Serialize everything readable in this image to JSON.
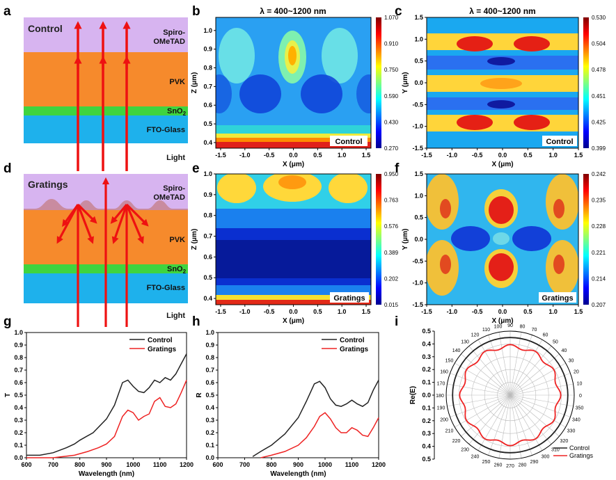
{
  "panel_letters": [
    "a",
    "b",
    "c",
    "d",
    "e",
    "f",
    "g",
    "h",
    "i"
  ],
  "diagram_control": {
    "title": "Control",
    "layers": [
      "Spiro-",
      "OMeTAD",
      "PVK",
      "SnO",
      "2",
      "FTO-Glass"
    ],
    "light_label": "Light"
  },
  "diagram_gratings": {
    "title": "Gratings",
    "layers": [
      "Spiro-",
      "OMeTAD",
      "PVK",
      "SnO",
      "2",
      "FTO-Glass"
    ],
    "light_label": "Light"
  },
  "colors": {
    "spiro": "#d7b4f0",
    "pvk": "#f68a2c",
    "sno2": "#3fd43f",
    "fto": "#1eb1ec",
    "arrow": "#ee1111",
    "control_line": "#222222",
    "gratings_line": "#ee2222"
  },
  "chart_data": [
    {
      "type": "heatmap",
      "id": "b",
      "title": "λ = 400~1200 nm",
      "xlabel": "X (μm)",
      "ylabel": "Z (μm)",
      "xlim": [
        -1.6,
        1.6
      ],
      "ylim": [
        0.37,
        1.07
      ],
      "xticks": [
        "-1.5",
        "-1.0",
        "-0.5",
        "0.0",
        "0.5",
        "1.0",
        "1.5"
      ],
      "yticks": [
        "0.4",
        "0.5",
        "0.6",
        "0.7",
        "0.8",
        "0.9",
        "1.0"
      ],
      "colorbar": [
        "1.070",
        "0.910",
        "0.750",
        "0.590",
        "0.430",
        "0.270"
      ],
      "label": "Control"
    },
    {
      "type": "heatmap",
      "id": "c",
      "title": "λ = 400~1200 nm",
      "xlabel": "X (μm)",
      "ylabel": "Y (μm)",
      "xlim": [
        -1.5,
        1.5
      ],
      "ylim": [
        -1.5,
        1.5
      ],
      "xticks": [
        "-1.5",
        "-1.0",
        "-0.5",
        "0.0",
        "0.5",
        "1.0",
        "1.5"
      ],
      "yticks": [
        "-1.5",
        "-1.0",
        "-0.5",
        "0.0",
        "0.5",
        "1.0",
        "1.5"
      ],
      "colorbar": [
        "0.530",
        "0.504",
        "0.478",
        "0.451",
        "0.425",
        "0.399"
      ],
      "label": "Control"
    },
    {
      "type": "heatmap",
      "id": "e",
      "xlabel": "X (μm)",
      "ylabel": "Z (μm)",
      "xlim": [
        -1.6,
        1.6
      ],
      "ylim": [
        0.37,
        1.0
      ],
      "xticks": [
        "-1.5",
        "-1.0",
        "-0.5",
        "0.0",
        "0.5",
        "1.0",
        "1.5"
      ],
      "yticks": [
        "0.4",
        "0.5",
        "0.6",
        "0.7",
        "0.8",
        "0.9",
        "1.0"
      ],
      "colorbar": [
        "0.950",
        "0.763",
        "0.576",
        "0.389",
        "0.202",
        "0.015"
      ],
      "label": "Gratings"
    },
    {
      "type": "heatmap",
      "id": "f",
      "xlabel": "X (μm)",
      "ylabel": "Y (μm)",
      "xlim": [
        -1.5,
        1.5
      ],
      "ylim": [
        -1.5,
        1.5
      ],
      "xticks": [
        "-1.5",
        "-1.0",
        "-0.5",
        "0.0",
        "0.5",
        "1.0",
        "1.5"
      ],
      "yticks": [
        "-1.5",
        "-1.0",
        "-0.5",
        "0.0",
        "0.5",
        "1.0",
        "1.5"
      ],
      "colorbar": [
        "0.242",
        "0.235",
        "0.228",
        "0.221",
        "0.214",
        "0.207"
      ],
      "label": "Gratings"
    },
    {
      "type": "line",
      "id": "g",
      "xlabel": "Wavelength (nm)",
      "ylabel": "T",
      "xlim": [
        600,
        1200
      ],
      "ylim": [
        0,
        1.0
      ],
      "xticks": [
        "600",
        "700",
        "800",
        "900",
        "1000",
        "1100",
        "1200"
      ],
      "yticks": [
        "0.0",
        "0.1",
        "0.2",
        "0.3",
        "0.4",
        "0.5",
        "0.6",
        "0.7",
        "0.8",
        "0.9",
        "1.0"
      ],
      "legend": "top-right",
      "series": [
        {
          "name": "Control",
          "x": [
            600,
            650,
            700,
            750,
            780,
            800,
            850,
            900,
            930,
            960,
            980,
            1000,
            1020,
            1040,
            1060,
            1080,
            1100,
            1120,
            1140,
            1160,
            1180,
            1200
          ],
          "y": [
            0.02,
            0.02,
            0.04,
            0.08,
            0.11,
            0.14,
            0.2,
            0.31,
            0.42,
            0.6,
            0.62,
            0.57,
            0.53,
            0.52,
            0.56,
            0.62,
            0.6,
            0.64,
            0.62,
            0.67,
            0.75,
            0.83
          ]
        },
        {
          "name": "Gratings",
          "x": [
            600,
            700,
            780,
            830,
            870,
            900,
            930,
            960,
            980,
            1000,
            1020,
            1040,
            1060,
            1080,
            1100,
            1120,
            1140,
            1160,
            1180,
            1200
          ],
          "y": [
            0.0,
            0.0,
            0.02,
            0.05,
            0.08,
            0.11,
            0.17,
            0.33,
            0.38,
            0.36,
            0.3,
            0.33,
            0.35,
            0.45,
            0.48,
            0.41,
            0.4,
            0.43,
            0.52,
            0.62
          ]
        }
      ]
    },
    {
      "type": "line",
      "id": "h",
      "xlabel": "Wavelength (nm)",
      "ylabel": "R",
      "xlim": [
        600,
        1200
      ],
      "ylim": [
        0,
        1.0
      ],
      "xticks": [
        "600",
        "700",
        "800",
        "900",
        "1000",
        "1100",
        "1200"
      ],
      "yticks": [
        "0.0",
        "0.1",
        "0.2",
        "0.3",
        "0.4",
        "0.5",
        "0.6",
        "0.7",
        "0.8",
        "0.9",
        "1.0"
      ],
      "legend": "top-right",
      "series": [
        {
          "name": "Control",
          "x": [
            730,
            760,
            800,
            850,
            900,
            930,
            960,
            980,
            1000,
            1020,
            1040,
            1060,
            1080,
            1100,
            1120,
            1140,
            1160,
            1180,
            1200
          ],
          "y": [
            0.01,
            0.05,
            0.1,
            0.19,
            0.32,
            0.45,
            0.59,
            0.61,
            0.56,
            0.47,
            0.42,
            0.41,
            0.43,
            0.46,
            0.43,
            0.41,
            0.44,
            0.54,
            0.62
          ]
        },
        {
          "name": "Gratings",
          "x": [
            760,
            800,
            850,
            900,
            930,
            960,
            980,
            1000,
            1020,
            1040,
            1060,
            1080,
            1100,
            1120,
            1140,
            1160,
            1180,
            1200
          ],
          "y": [
            0.0,
            0.02,
            0.05,
            0.1,
            0.16,
            0.25,
            0.33,
            0.36,
            0.31,
            0.24,
            0.2,
            0.2,
            0.24,
            0.22,
            0.18,
            0.17,
            0.24,
            0.32
          ]
        }
      ]
    },
    {
      "type": "polar",
      "id": "i",
      "ylabel": "Re(E)",
      "rlim": [
        0,
        0.5
      ],
      "rticks": [
        "0.5",
        "0.4",
        "0.3",
        "0.2",
        "0.1",
        "0.0",
        "0.1",
        "0.2",
        "0.3",
        "0.4",
        "0.5"
      ],
      "angle_ticks": [
        "0",
        "10",
        "20",
        "30",
        "40",
        "50",
        "60",
        "70",
        "80",
        "90",
        "100",
        "110",
        "120",
        "130",
        "140",
        "150",
        "160",
        "170",
        "180",
        "190",
        "200",
        "210",
        "220",
        "230",
        "240",
        "250",
        "260",
        "270",
        "280",
        "290",
        "300",
        "310",
        "320",
        "330",
        "340",
        "350"
      ],
      "legend": "bottom-right",
      "series": [
        {
          "name": "Control",
          "r": 0.45
        },
        {
          "name": "Gratings",
          "r_mean": 0.38,
          "ripple": 0.015,
          "ripple_count": 12
        }
      ]
    }
  ]
}
